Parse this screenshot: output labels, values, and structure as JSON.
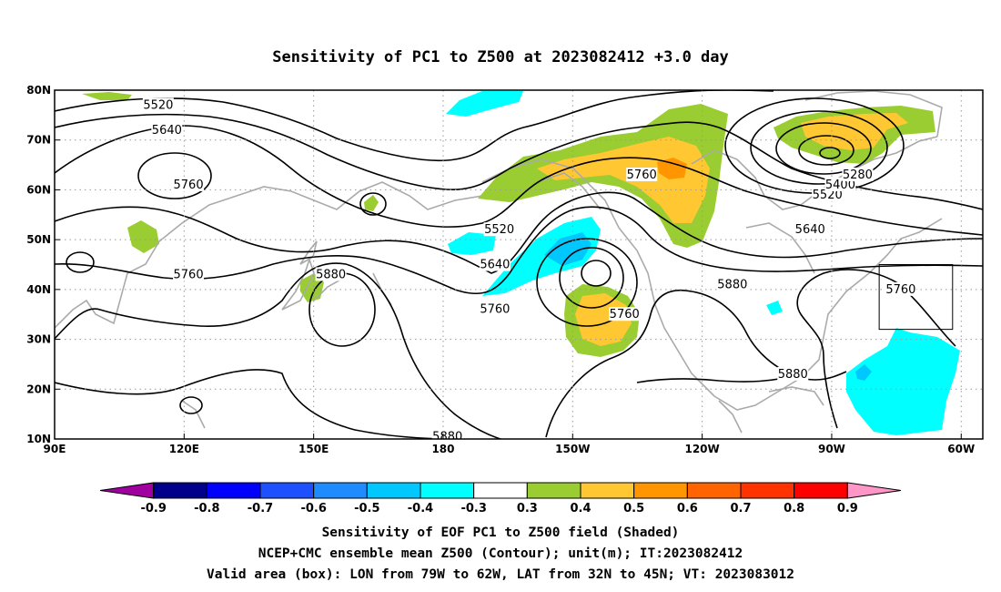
{
  "title": "Sensitivity of PC1 to Z500 at 2023082412 +3.0 day",
  "map": {
    "lon_range": [
      90,
      305
    ],
    "lat_range": [
      10,
      80
    ],
    "lon_ticks": [
      {
        "lon": 90,
        "label": "90E"
      },
      {
        "lon": 120,
        "label": "120E"
      },
      {
        "lon": 150,
        "label": "150E"
      },
      {
        "lon": 180,
        "label": "180"
      },
      {
        "lon": 210,
        "label": "150W"
      },
      {
        "lon": 240,
        "label": "120W"
      },
      {
        "lon": 270,
        "label": "90W"
      },
      {
        "lon": 300,
        "label": "60W"
      }
    ],
    "lat_ticks": [
      {
        "lat": 80,
        "label": "80N"
      },
      {
        "lat": 70,
        "label": "70N"
      },
      {
        "lat": 60,
        "label": "60N"
      },
      {
        "lat": 50,
        "label": "50N"
      },
      {
        "lat": 40,
        "label": "40N"
      },
      {
        "lat": 30,
        "label": "30N"
      },
      {
        "lat": 20,
        "label": "20N"
      },
      {
        "lat": 10,
        "label": "10N"
      }
    ],
    "grid": true,
    "valid_box": {
      "lon_min": 281,
      "lon_max": 298,
      "lat_min": 32,
      "lat_max": 45
    },
    "contour_labels": [
      {
        "text": "5520",
        "lon": 114,
        "lat": 77
      },
      {
        "text": "5640",
        "lon": 116,
        "lat": 72
      },
      {
        "text": "5760",
        "lon": 121,
        "lat": 61
      },
      {
        "text": "5760",
        "lon": 121,
        "lat": 43
      },
      {
        "text": "5880",
        "lon": 154,
        "lat": 43
      },
      {
        "text": "5520",
        "lon": 193,
        "lat": 52
      },
      {
        "text": "5640",
        "lon": 192,
        "lat": 45
      },
      {
        "text": "5760",
        "lon": 192,
        "lat": 36
      },
      {
        "text": "5760",
        "lon": 226,
        "lat": 63
      },
      {
        "text": "5760",
        "lon": 222,
        "lat": 35
      },
      {
        "text": "5880",
        "lon": 247,
        "lat": 41
      },
      {
        "text": "5880",
        "lon": 261,
        "lat": 23
      },
      {
        "text": "5880",
        "lon": 181,
        "lat": 10.5
      },
      {
        "text": "5760",
        "lon": 286,
        "lat": 40
      },
      {
        "text": "5640",
        "lon": 265,
        "lat": 52
      },
      {
        "text": "5520",
        "lon": 269,
        "lat": 59
      },
      {
        "text": "5400",
        "lon": 272,
        "lat": 61
      },
      {
        "text": "5280",
        "lon": 276,
        "lat": 63
      }
    ]
  },
  "colorbar": {
    "colors": [
      "#a000a0",
      "#00008b",
      "#0000ff",
      "#1e50ff",
      "#1e8cff",
      "#00c8ff",
      "#00ffff",
      "#ffffff",
      "#9acd32",
      "#ffc832",
      "#ff9600",
      "#ff6400",
      "#ff3200",
      "#ff0000",
      "#ff96c8"
    ],
    "labels": [
      "-0.9",
      "-0.8",
      "-0.7",
      "-0.6",
      "-0.5",
      "-0.4",
      "-0.3",
      "0.3",
      "0.4",
      "0.5",
      "0.6",
      "0.7",
      "0.8",
      "0.9"
    ]
  },
  "footer": {
    "line1": "Sensitivity of EOF PC1 to Z500 field (Shaded)",
    "line2": "NCEP+CMC ensemble mean Z500 (Contour); unit(m); IT:2023082412",
    "line3": "Valid area (box): LON from 79W to 62W, LAT from 32N to 45N; VT: 2023083012"
  }
}
